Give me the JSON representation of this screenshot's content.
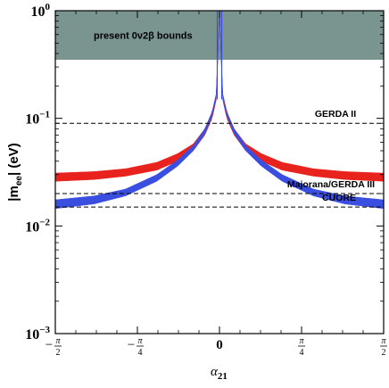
{
  "chart_data": {
    "type": "line",
    "xlabel": "α",
    "xlabel_sub": "21",
    "ylabel": "|m",
    "ylabel_sub": "ee",
    "ylabel_suffix": "| (eV)",
    "x_range_rad": [
      -1.5708,
      1.5708
    ],
    "y_range": [
      0.001,
      1.0
    ],
    "y_scale": "log",
    "grid": false,
    "legend": "none",
    "x_ticks": [
      {
        "value": -1.5708,
        "sign": "−",
        "num": "π",
        "den": "2"
      },
      {
        "value": -0.7854,
        "sign": "−",
        "num": "π",
        "den": "4"
      },
      {
        "value": 0,
        "plain": "0"
      },
      {
        "value": 0.7854,
        "sign": "",
        "num": "π",
        "den": "4"
      },
      {
        "value": 1.5708,
        "sign": "",
        "num": "π",
        "den": "2"
      }
    ],
    "y_ticks": [
      {
        "value": 1.0,
        "base": "10",
        "exp": "0"
      },
      {
        "value": 0.1,
        "base": "10",
        "exp": "−1"
      },
      {
        "value": 0.01,
        "base": "10",
        "exp": "−2"
      },
      {
        "value": 0.001,
        "base": "10",
        "exp": "−3"
      }
    ],
    "excluded_region": {
      "from": 0.35,
      "to": 1.0,
      "label": "present 0ν2β bounds",
      "color": "#7a9490"
    },
    "reference_lines": [
      {
        "value": 0.09,
        "label": "GERDA II"
      },
      {
        "value": 0.02,
        "label": "Majorana/GERDA III"
      },
      {
        "value": 0.015,
        "label": "CUORE"
      }
    ],
    "series": [
      {
        "color": "#e8231d",
        "band_lower": [
          0.026,
          0.027,
          0.029,
          0.033,
          0.04,
          0.05,
          0.07,
          0.1,
          0.15,
          1.0
        ],
        "band_upper": [
          0.031,
          0.032,
          0.034,
          0.039,
          0.047,
          0.058,
          0.08,
          0.115,
          0.17,
          1.0
        ],
        "alpha_abs_rad": [
          1.5708,
          1.2,
          0.9,
          0.6,
          0.4,
          0.25,
          0.14,
          0.07,
          0.03,
          0.0
        ]
      },
      {
        "color": "#3a4fe0",
        "band_lower": [
          0.0145,
          0.016,
          0.019,
          0.026,
          0.036,
          0.05,
          0.072,
          0.105,
          0.155,
          1.0
        ],
        "band_upper": [
          0.0175,
          0.019,
          0.022,
          0.03,
          0.041,
          0.056,
          0.08,
          0.115,
          0.17,
          1.0
        ],
        "alpha_abs_rad": [
          1.5708,
          1.2,
          0.9,
          0.6,
          0.4,
          0.25,
          0.14,
          0.07,
          0.03,
          0.0
        ]
      }
    ]
  }
}
